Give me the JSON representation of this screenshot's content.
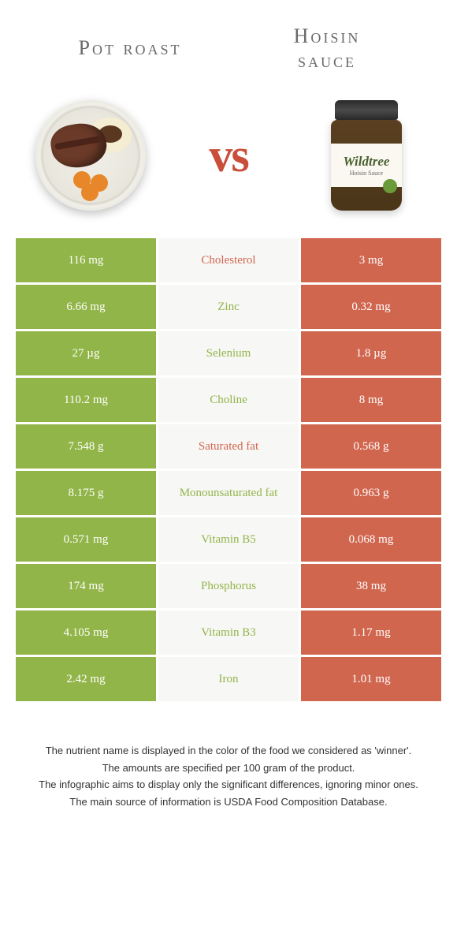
{
  "header": {
    "left_title": "Pot roast",
    "right_title_line1": "Hoisin",
    "right_title_line2": "sauce",
    "vs": "vs"
  },
  "colors": {
    "left_winner": "#92b549",
    "right_winner": "#d1664f",
    "middle_bg": "#f7f7f5",
    "left_text_color": "#92b549",
    "right_text_color": "#d1664f"
  },
  "rows": [
    {
      "left": "116 mg",
      "name": "Cholesterol",
      "right": "3 mg",
      "winner": "left",
      "name_color": "#d1664f"
    },
    {
      "left": "6.66 mg",
      "name": "Zinc",
      "right": "0.32 mg",
      "winner": "left",
      "name_color": "#92b549"
    },
    {
      "left": "27 µg",
      "name": "Selenium",
      "right": "1.8 µg",
      "winner": "left",
      "name_color": "#92b549"
    },
    {
      "left": "110.2 mg",
      "name": "Choline",
      "right": "8 mg",
      "winner": "left",
      "name_color": "#92b549"
    },
    {
      "left": "7.548 g",
      "name": "Saturated fat",
      "right": "0.568 g",
      "winner": "left",
      "name_color": "#d1664f"
    },
    {
      "left": "8.175 g",
      "name": "Monounsaturated fat",
      "right": "0.963 g",
      "winner": "left",
      "name_color": "#92b549"
    },
    {
      "left": "0.571 mg",
      "name": "Vitamin B5",
      "right": "0.068 mg",
      "winner": "left",
      "name_color": "#92b549"
    },
    {
      "left": "174 mg",
      "name": "Phosphorus",
      "right": "38 mg",
      "winner": "left",
      "name_color": "#92b549"
    },
    {
      "left": "4.105 mg",
      "name": "Vitamin B3",
      "right": "1.17 mg",
      "winner": "left",
      "name_color": "#92b549"
    },
    {
      "left": "2.42 mg",
      "name": "Iron",
      "right": "1.01 mg",
      "winner": "left",
      "name_color": "#92b549"
    }
  ],
  "jar": {
    "brand": "Wildtree",
    "sub": "Hoisin Sauce"
  },
  "footer": {
    "line1": "The nutrient name is displayed in the color of the food we considered as 'winner'.",
    "line2": "The amounts are specified per 100 gram of the product.",
    "line3": "The infographic aims to display only the significant differences, ignoring minor ones.",
    "line4": "The main source of information is USDA Food Composition Database."
  }
}
